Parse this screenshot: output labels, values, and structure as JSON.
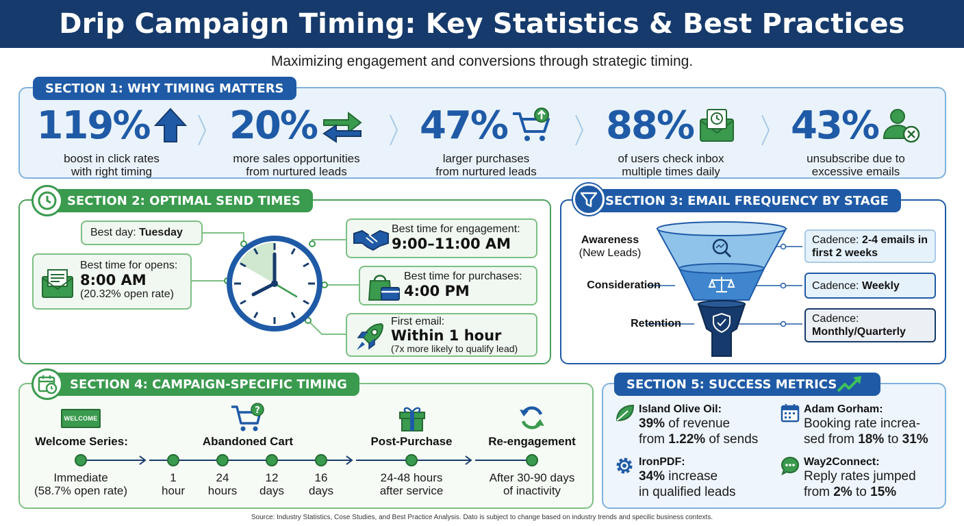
{
  "title": "Drip Campaign Timing: Key Statistics & Best Practices",
  "subtitle": "Maximizing engagement and conversions through strategic timing.",
  "colors": {
    "navy": "#163a6b",
    "blue": "#1f5aa6",
    "green": "#3a9a4e",
    "light_blue": "#eaf3fb"
  },
  "section1": {
    "tab": "SECTION 1: WHY TIMING MATTERS",
    "stats": [
      {
        "value": "119%",
        "desc1": "boost in click rates",
        "desc2": "with right timing",
        "icon": "arrow-up-icon"
      },
      {
        "value": "20%",
        "desc1": "more sales opportunities",
        "desc2": "from nurtured leads",
        "icon": "exchange-arrows-icon"
      },
      {
        "value": "47%",
        "desc1": "larger purchases",
        "desc2": "from nurtured leads",
        "icon": "shopping-cart-icon"
      },
      {
        "value": "88%",
        "desc1": "of users check inbox",
        "desc2": "multiple times daily",
        "icon": "envelope-clock-icon"
      },
      {
        "value": "43%",
        "desc1": "unsubscribe due to",
        "desc2": "excessive emails",
        "icon": "user-remove-icon"
      }
    ]
  },
  "section2": {
    "tab": "SECTION 2: OPTIMAL SEND TIMES",
    "best_day_label": "Best day: ",
    "best_day_value": "Tuesday",
    "opens_label": "Best time for opens:",
    "opens_value": "8:00 AM",
    "opens_note": "(20.32% open rate)",
    "engagement_label": "Best time for engagement:",
    "engagement_value": "9:00–11:00 AM",
    "purchases_label": "Best time for purchases:",
    "purchases_value": "4:00 PM",
    "first_email_label": "First email:",
    "first_email_value": "Within 1 hour",
    "first_email_note": "(7x more likely to qualify lead)"
  },
  "section3": {
    "tab": "SECTION 3: EMAIL FREQUENCY BY STAGE",
    "stages": [
      {
        "name": "Awareness",
        "sub": "(New Leads)",
        "cadence_label": "Cadence: ",
        "cadence_value": "2-4 emails in first 2 weeks"
      },
      {
        "name": "Consideration",
        "sub": "",
        "cadence_label": "Cadence: ",
        "cadence_value": "Weekly"
      },
      {
        "name": "Retention",
        "sub": "",
        "cadence_label": "Cadence:",
        "cadence_value": "Monthly/Quarterly"
      }
    ]
  },
  "section4": {
    "tab": "SECTION 4: CAMPAIGN-SPECIFIC TIMING",
    "welcome_badge": "WELCOME",
    "campaigns": [
      "Welcome Series:",
      "Abandoned Cart",
      "Post-Purchase",
      "Re-engagement"
    ],
    "points": [
      {
        "l1": "Immediate",
        "l2": "(58.7% open rate)"
      },
      {
        "l1": "1",
        "l2": "hour"
      },
      {
        "l1": "24",
        "l2": "hours"
      },
      {
        "l1": "12",
        "l2": "days"
      },
      {
        "l1": "16",
        "l2": "days"
      },
      {
        "l1": "24-48 hours",
        "l2": "after service"
      },
      {
        "l1": "After 30-90 days",
        "l2": "of inactivity"
      }
    ]
  },
  "section5": {
    "tab": "SECTION 5: SUCCESS METRICS",
    "metrics": [
      {
        "name": "Island Olive Oil:",
        "b1": "39%",
        "t1": " of revenue",
        "t2": "from ",
        "b2": "1.22%",
        "t3": " of sends"
      },
      {
        "name": "Adam Gorham:",
        "t1": "Booking rate increa-",
        "t2": "sed from ",
        "b1": "18%",
        "t3": " to ",
        "b2": "31%"
      },
      {
        "name": "IronPDF:",
        "b1": "34%",
        "t1": " increase",
        "t2": "in qualified leads"
      },
      {
        "name": "Way2Connect:",
        "t1": "Reply rates jumped",
        "t2": "from ",
        "b1": "2%",
        "t3": " to ",
        "b2": "15%"
      }
    ]
  },
  "source": "Source: Industry Statistics, Cose Studies, and Best Practice Analysis. Dato is subject to change based on industry trends and specilic business contexts."
}
